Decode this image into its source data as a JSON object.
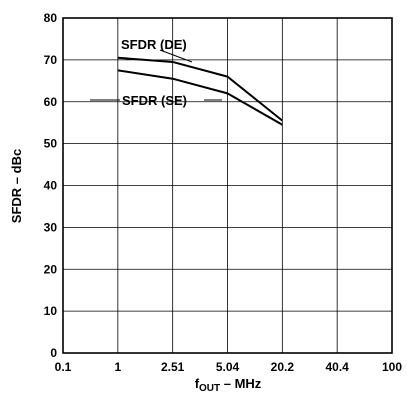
{
  "chart_data": {
    "type": "line",
    "x_axis": {
      "label_main": "f",
      "label_sub": "OUT",
      "label_rest": " – MHz",
      "tick_labels": [
        "0.1",
        "1",
        "2.51",
        "5.04",
        "20.2",
        "40.4",
        "100"
      ]
    },
    "y_axis": {
      "label": "SFDR – dBc",
      "ylim": [
        0,
        80
      ],
      "ticks": [
        0,
        10,
        20,
        30,
        40,
        50,
        60,
        70,
        80
      ]
    },
    "grid": true,
    "series": [
      {
        "name": "SFDR (DE)",
        "x": [
          "1",
          "2.51",
          "5.04",
          "20.2"
        ],
        "values": [
          70.5,
          69.5,
          66,
          55.5
        ]
      },
      {
        "name": "SFDR (SE)",
        "x": [
          "1",
          "2.51",
          "5.04",
          "20.2"
        ],
        "values": [
          67.5,
          65.5,
          62,
          54.5
        ]
      }
    ],
    "annotations": [
      {
        "text": "SFDR (DE)",
        "series": 0
      },
      {
        "text": "SFDR (SE)",
        "series": 1
      }
    ]
  }
}
